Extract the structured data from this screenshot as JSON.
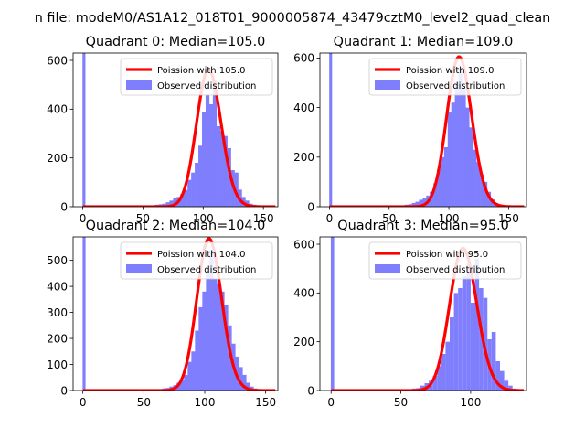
{
  "figure": {
    "suptitle": "n file: modeM0/AS1A12_018T01_9000005874_43479cztM0_level2_quad_clean"
  },
  "colors": {
    "hist_fill": "#7f7ffe",
    "poisson_line": "#ff0000",
    "axis": "#000000",
    "background": "#ffffff"
  },
  "chart_data": [
    {
      "type": "bar",
      "title": "Quadrant 0: Median=105.0",
      "xlim": [
        -8,
        162
      ],
      "ylim": [
        0,
        630
      ],
      "xticks": [
        0,
        50,
        100,
        150
      ],
      "yticks": [
        0,
        200,
        400,
        600
      ],
      "grid": false,
      "legend_position": "top-right",
      "series": [
        {
          "name": "Poission with 105.0",
          "kind": "line",
          "mean": 105.0
        },
        {
          "name": "Observed distribution",
          "kind": "hist",
          "bin_width": 3.2,
          "spike": {
            "x": 1.0,
            "value": 630
          },
          "bins": [
            [
              60,
              8
            ],
            [
              63,
              10
            ],
            [
              66,
              12
            ],
            [
              69,
              18
            ],
            [
              72,
              25
            ],
            [
              75,
              35
            ],
            [
              78,
              40
            ],
            [
              81,
              52
            ],
            [
              84,
              68
            ],
            [
              87,
              110
            ],
            [
              90,
              140
            ],
            [
              93,
              180
            ],
            [
              96,
              250
            ],
            [
              99,
              390
            ],
            [
              102,
              460
            ],
            [
              105,
              420
            ],
            [
              108,
              520
            ],
            [
              111,
              330
            ],
            [
              114,
              310
            ],
            [
              117,
              290
            ],
            [
              120,
              240
            ],
            [
              123,
              150
            ],
            [
              126,
              140
            ],
            [
              129,
              70
            ],
            [
              132,
              40
            ],
            [
              135,
              25
            ],
            [
              138,
              12
            ],
            [
              141,
              8
            ],
            [
              144,
              5
            ]
          ]
        }
      ]
    },
    {
      "type": "bar",
      "title": "Quadrant 1: Median=109.0",
      "xlim": [
        -8,
        165
      ],
      "ylim": [
        0,
        620
      ],
      "xticks": [
        0,
        50,
        100,
        150
      ],
      "yticks": [
        0,
        200,
        400,
        600
      ],
      "grid": false,
      "legend_position": "top-right",
      "series": [
        {
          "name": "Poission with 109.0",
          "kind": "line",
          "mean": 109.0
        },
        {
          "name": "Observed distribution",
          "kind": "hist",
          "bin_width": 3.2,
          "spike": {
            "x": 1.0,
            "value": 620
          },
          "bins": [
            [
              63,
              8
            ],
            [
              66,
              10
            ],
            [
              69,
              15
            ],
            [
              72,
              20
            ],
            [
              75,
              28
            ],
            [
              78,
              35
            ],
            [
              81,
              45
            ],
            [
              84,
              60
            ],
            [
              87,
              95
            ],
            [
              90,
              150
            ],
            [
              93,
              200
            ],
            [
              96,
              240
            ],
            [
              99,
              380
            ],
            [
              102,
              420
            ],
            [
              105,
              500
            ],
            [
              108,
              560
            ],
            [
              111,
              480
            ],
            [
              114,
              400
            ],
            [
              117,
              320
            ],
            [
              120,
              230
            ],
            [
              123,
              180
            ],
            [
              126,
              130
            ],
            [
              129,
              100
            ],
            [
              132,
              60
            ],
            [
              135,
              30
            ],
            [
              138,
              15
            ],
            [
              141,
              8
            ]
          ]
        }
      ]
    },
    {
      "type": "bar",
      "title": "Quadrant 2: Median=104.0",
      "xlim": [
        -8,
        160
      ],
      "ylim": [
        0,
        590
      ],
      "xticks": [
        0,
        50,
        100,
        150
      ],
      "yticks": [
        0,
        100,
        200,
        300,
        400,
        500
      ],
      "grid": false,
      "legend_position": "top-right",
      "series": [
        {
          "name": "Poission with 104.0",
          "kind": "line",
          "mean": 104.0
        },
        {
          "name": "Observed distribution",
          "kind": "hist",
          "bin_width": 3.2,
          "spike": {
            "x": 1.0,
            "value": 590
          },
          "bins": [
            [
              62,
              5
            ],
            [
              65,
              8
            ],
            [
              68,
              10
            ],
            [
              71,
              15
            ],
            [
              74,
              20
            ],
            [
              77,
              30
            ],
            [
              80,
              40
            ],
            [
              83,
              60
            ],
            [
              86,
              110
            ],
            [
              89,
              150
            ],
            [
              92,
              230
            ],
            [
              95,
              320
            ],
            [
              98,
              380
            ],
            [
              101,
              450
            ],
            [
              104,
              540
            ],
            [
              107,
              430
            ],
            [
              110,
              410
            ],
            [
              113,
              380
            ],
            [
              116,
              330
            ],
            [
              119,
              250
            ],
            [
              122,
              180
            ],
            [
              125,
              130
            ],
            [
              128,
              90
            ],
            [
              131,
              60
            ],
            [
              134,
              30
            ],
            [
              137,
              15
            ],
            [
              140,
              8
            ]
          ]
        }
      ]
    },
    {
      "type": "bar",
      "title": "Quadrant 3: Median=95.0",
      "xlim": [
        -8,
        140
      ],
      "ylim": [
        0,
        630
      ],
      "xticks": [
        0,
        50,
        100
      ],
      "yticks": [
        0,
        200,
        400,
        600
      ],
      "grid": false,
      "legend_position": "top-right",
      "series": [
        {
          "name": "Poission with 95.0",
          "kind": "line",
          "mean": 95.0
        },
        {
          "name": "Observed distribution",
          "kind": "hist",
          "bin_width": 3.0,
          "spike": {
            "x": 1.0,
            "value": 630
          },
          "bins": [
            [
              55,
              5
            ],
            [
              58,
              8
            ],
            [
              61,
              10
            ],
            [
              64,
              20
            ],
            [
              67,
              30
            ],
            [
              70,
              40
            ],
            [
              73,
              60
            ],
            [
              76,
              100
            ],
            [
              79,
              150
            ],
            [
              82,
              200
            ],
            [
              85,
              300
            ],
            [
              88,
              400
            ],
            [
              91,
              420
            ],
            [
              94,
              470
            ],
            [
              97,
              520
            ],
            [
              100,
              360
            ],
            [
              103,
              540
            ],
            [
              106,
              420
            ],
            [
              109,
              380
            ],
            [
              112,
              210
            ],
            [
              115,
              240
            ],
            [
              118,
              120
            ],
            [
              121,
              80
            ],
            [
              124,
              40
            ],
            [
              127,
              20
            ],
            [
              130,
              8
            ]
          ]
        }
      ]
    }
  ]
}
